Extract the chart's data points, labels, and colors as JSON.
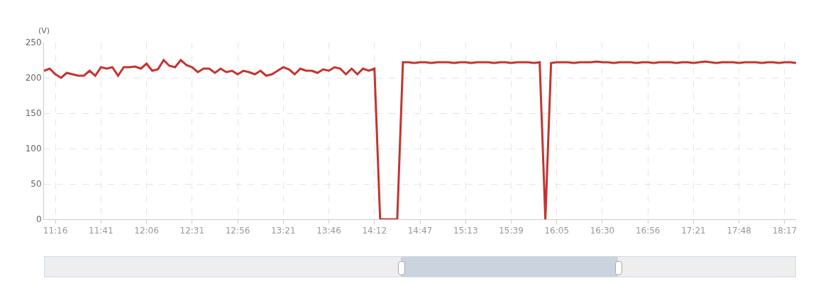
{
  "chart_data": {
    "type": "line",
    "ylabel": "(V)",
    "categories": [
      null,
      null,
      "11:16",
      null,
      null,
      null,
      null,
      null,
      null,
      null,
      "11:41",
      null,
      null,
      null,
      null,
      null,
      null,
      null,
      "12:06",
      null,
      null,
      null,
      null,
      null,
      null,
      null,
      "12:31",
      null,
      null,
      null,
      null,
      null,
      null,
      null,
      "12:56",
      null,
      null,
      null,
      null,
      null,
      null,
      null,
      "13:21",
      null,
      null,
      null,
      null,
      null,
      null,
      null,
      "13:46",
      null,
      null,
      null,
      null,
      null,
      null,
      null,
      "14:12",
      null,
      null,
      null,
      null,
      null,
      null,
      null,
      "14:47",
      null,
      null,
      null,
      null,
      null,
      null,
      null,
      "15:13",
      null,
      null,
      null,
      null,
      null,
      null,
      null,
      "15:39",
      null,
      null,
      null,
      null,
      null,
      null,
      null,
      "16:05",
      null,
      null,
      null,
      null,
      null,
      null,
      null,
      "16:30",
      null,
      null,
      null,
      null,
      null,
      null,
      null,
      "16:56",
      null,
      null,
      null,
      null,
      null,
      null,
      null,
      "17:21",
      null,
      null,
      null,
      null,
      null,
      null,
      null,
      "17:48",
      null,
      null,
      null,
      null,
      null,
      null,
      null,
      "18:17",
      null,
      null
    ],
    "series": [
      {
        "color": "#c23531",
        "values": [
          210,
          213,
          205,
          200,
          207,
          205,
          203,
          203,
          210,
          203,
          215,
          213,
          215,
          203,
          215,
          215,
          216,
          213,
          220,
          210,
          212,
          225,
          217,
          215,
          225,
          218,
          215,
          208,
          213,
          213,
          207,
          213,
          208,
          210,
          205,
          210,
          208,
          205,
          210,
          203,
          205,
          210,
          215,
          212,
          205,
          213,
          210,
          210,
          207,
          212,
          210,
          215,
          213,
          205,
          213,
          205,
          213,
          210,
          213,
          0,
          0,
          0,
          0,
          222,
          222,
          221,
          222,
          222,
          221,
          222,
          222,
          222,
          221,
          222,
          222,
          221,
          222,
          222,
          222,
          221,
          222,
          222,
          221,
          222,
          222,
          222,
          221,
          222,
          0,
          221,
          222,
          222,
          222,
          221,
          222,
          222,
          222,
          223,
          222,
          222,
          221,
          222,
          222,
          222,
          221,
          222,
          222,
          221,
          222,
          222,
          222,
          221,
          222,
          222,
          221,
          222,
          223,
          222,
          221,
          222,
          222,
          222,
          221,
          222,
          222,
          222,
          221,
          222,
          222,
          221,
          222,
          222,
          221
        ]
      }
    ],
    "ylim": [
      0,
      250
    ],
    "yticks": [
      0,
      50,
      100,
      150,
      200,
      250
    ],
    "grid": true,
    "line_style": "solid"
  }
}
